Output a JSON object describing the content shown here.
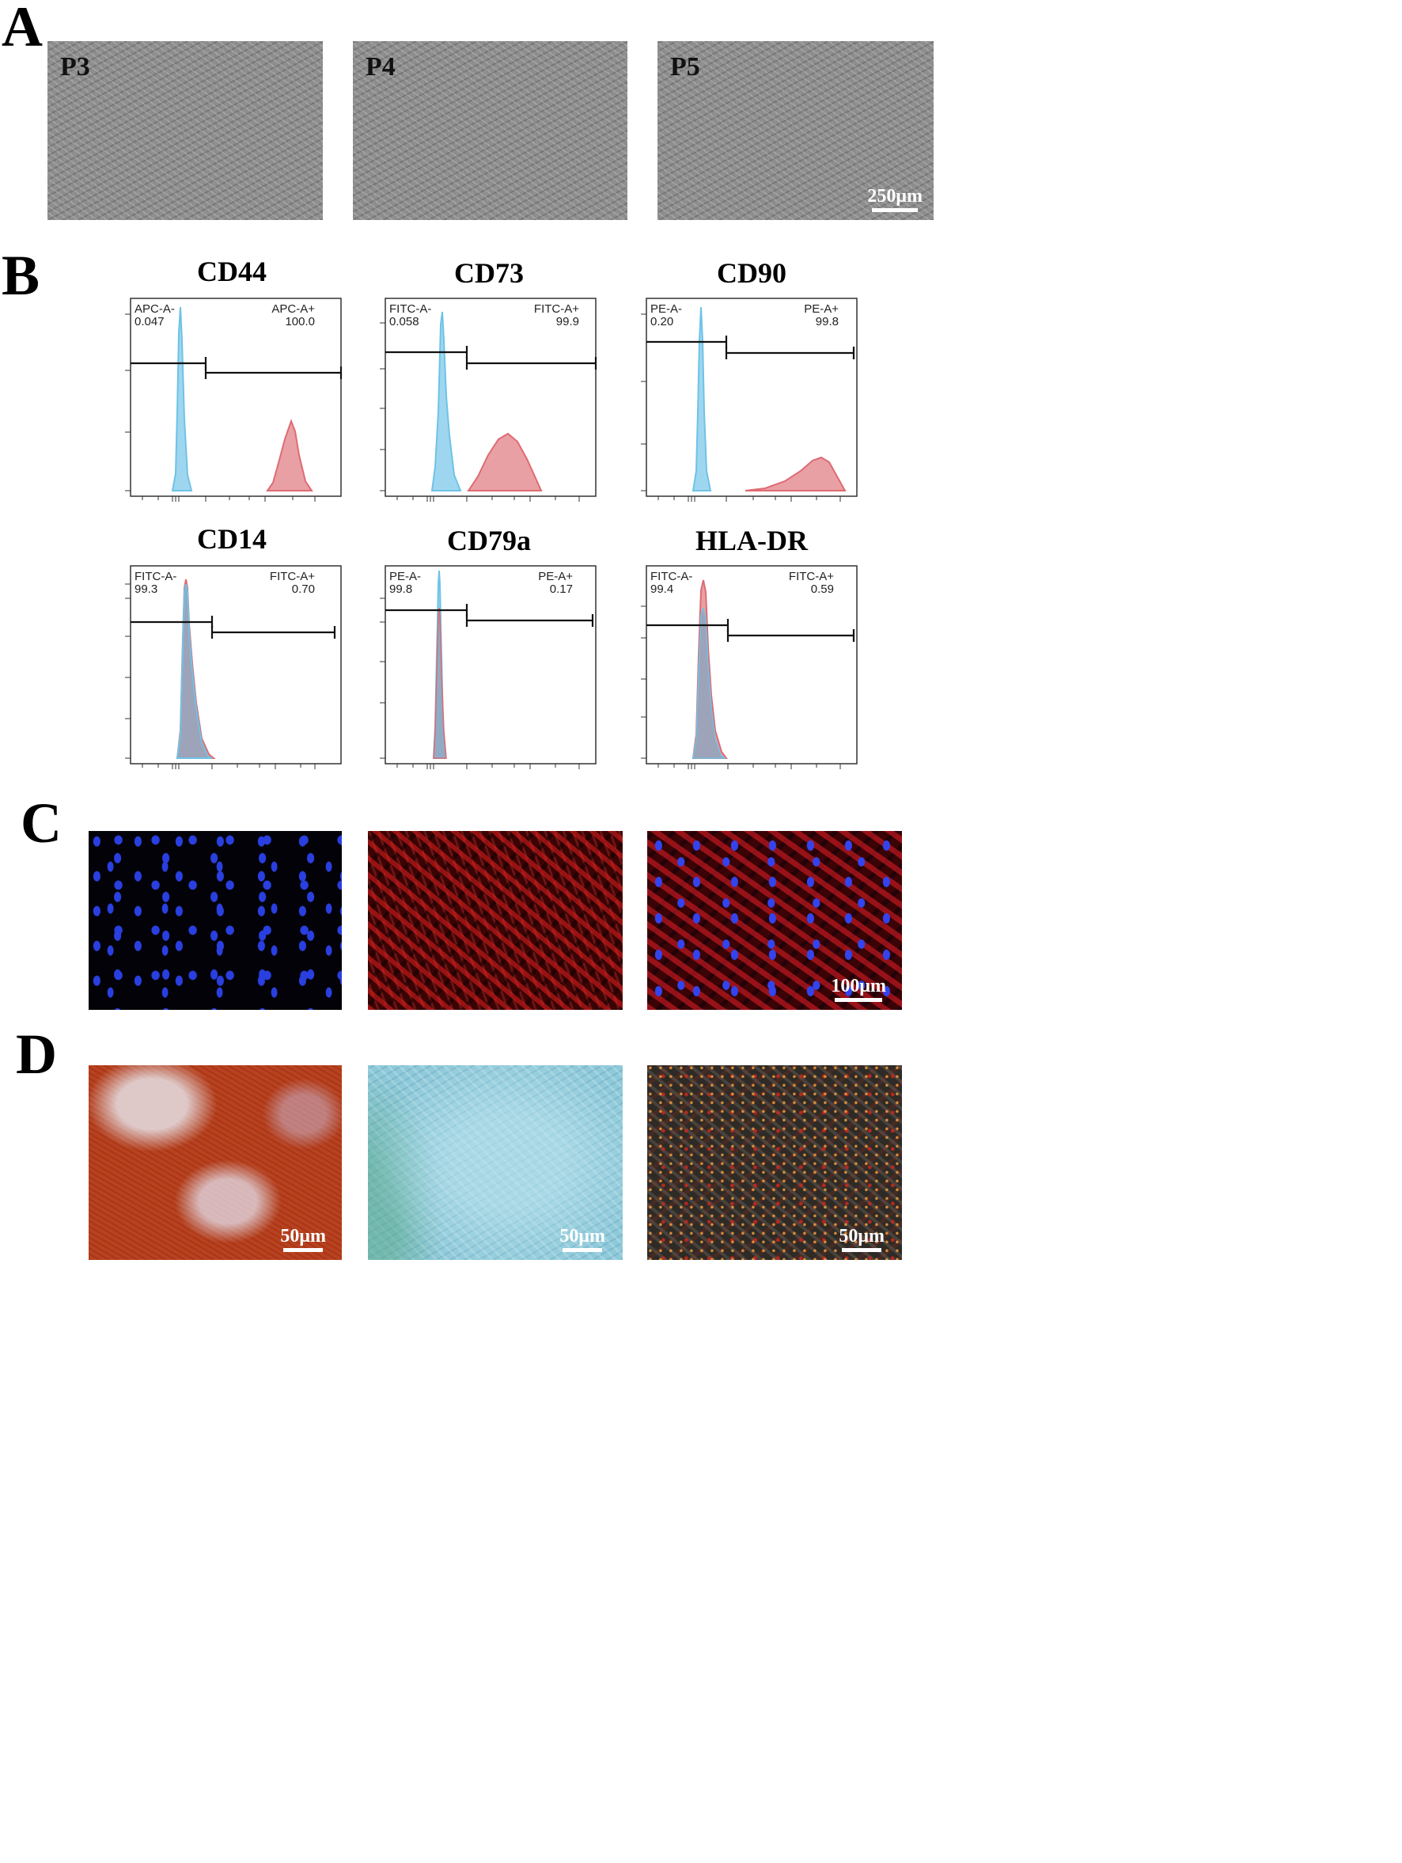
{
  "panels": {
    "A": {
      "letter": "A",
      "images": [
        {
          "label": "P3"
        },
        {
          "label": "P4"
        },
        {
          "label": "P5"
        }
      ],
      "scalebar": "250μm"
    },
    "B": {
      "letter": "B",
      "histograms": [
        {
          "title": "CD44",
          "neg_gate": "APC-A-",
          "neg_value": "0.047",
          "pos_gate": "APC-A+",
          "pos_value": "100.0"
        },
        {
          "title": "CD73",
          "neg_gate": "FITC-A-",
          "neg_value": "0.058",
          "pos_gate": "FITC-A+",
          "pos_value": "99.9"
        },
        {
          "title": "CD90",
          "neg_gate": "PE-A-",
          "neg_value": "0.20",
          "pos_gate": "PE-A+",
          "pos_value": "99.8"
        },
        {
          "title": "CD14",
          "neg_gate": "FITC-A-",
          "neg_value": "99.3",
          "pos_gate": "FITC-A+",
          "pos_value": "0.70"
        },
        {
          "title": "CD79a",
          "neg_gate": "PE-A-",
          "neg_value": "99.8",
          "pos_gate": "PE-A+",
          "pos_value": "0.17"
        },
        {
          "title": "HLA-DR",
          "neg_gate": "FITC-A-",
          "neg_value": "99.4",
          "pos_gate": "FITC-A+",
          "pos_value": "0.59"
        }
      ],
      "colors": {
        "control": "#6ec3e6",
        "sample": "#de6b73",
        "overlap": "#8fa3bd"
      }
    },
    "C": {
      "letter": "C",
      "scalebar": "100μm"
    },
    "D": {
      "letter": "D",
      "scalebars": [
        "50μm",
        "50μm",
        "50μm"
      ]
    }
  }
}
